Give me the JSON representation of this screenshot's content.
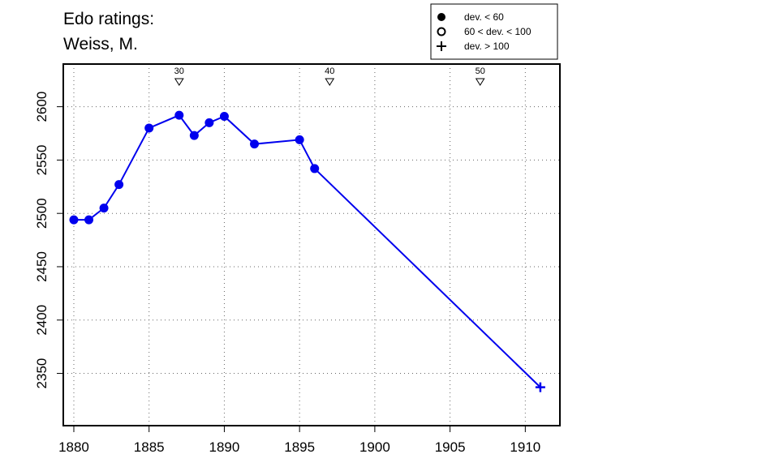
{
  "title_line1": "Edo ratings:",
  "title_line2": "Weiss, M.",
  "legend": [
    {
      "symbol": "filled-circle",
      "label": "dev. < 60"
    },
    {
      "symbol": "open-circle",
      "label": "60 < dev. < 100"
    },
    {
      "symbol": "plus",
      "label": "dev. > 100"
    }
  ],
  "colors": {
    "series": "#0000ee",
    "axis": "#000000",
    "grid": "#666666"
  },
  "chart_data": {
    "type": "line",
    "x_ticks": [
      "1880",
      "1885",
      "1890",
      "1895",
      "1900",
      "1905",
      "1910"
    ],
    "y_ticks": [
      "2350",
      "2400",
      "2450",
      "2500",
      "2550",
      "2600"
    ],
    "xlim": [
      1879.3,
      1912.3
    ],
    "ylim": [
      2301,
      2640
    ],
    "grid": true,
    "legend_placement": "top-right",
    "age_markers": [
      {
        "label": "30",
        "x": 1887
      },
      {
        "label": "40",
        "x": 1897
      },
      {
        "label": "50",
        "x": 1907
      }
    ],
    "series": [
      {
        "points": [
          {
            "x": 1880,
            "y": 2494,
            "dev": "lt60"
          },
          {
            "x": 1881,
            "y": 2494,
            "dev": "lt60"
          },
          {
            "x": 1882,
            "y": 2505,
            "dev": "lt60"
          },
          {
            "x": 1883,
            "y": 2527,
            "dev": "lt60"
          },
          {
            "x": 1885,
            "y": 2580,
            "dev": "lt60"
          },
          {
            "x": 1887,
            "y": 2592,
            "dev": "lt60"
          },
          {
            "x": 1888,
            "y": 2573,
            "dev": "lt60"
          },
          {
            "x": 1889,
            "y": 2585,
            "dev": "lt60"
          },
          {
            "x": 1890,
            "y": 2591,
            "dev": "lt60"
          },
          {
            "x": 1892,
            "y": 2565,
            "dev": "lt60"
          },
          {
            "x": 1895,
            "y": 2569,
            "dev": "lt60"
          },
          {
            "x": 1896,
            "y": 2542,
            "dev": "lt60"
          },
          {
            "x": 1911,
            "y": 2337,
            "dev": "gt100"
          }
        ]
      }
    ]
  }
}
